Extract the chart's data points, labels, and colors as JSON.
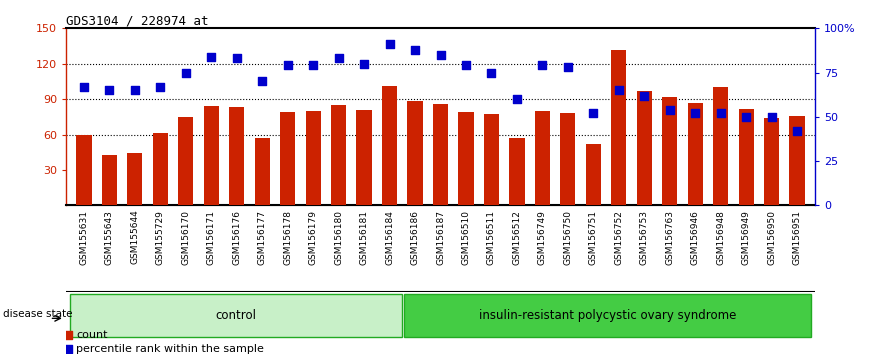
{
  "title": "GDS3104 / 228974_at",
  "categories": [
    "GSM155631",
    "GSM155643",
    "GSM155644",
    "GSM155729",
    "GSM156170",
    "GSM156171",
    "GSM156176",
    "GSM156177",
    "GSM156178",
    "GSM156179",
    "GSM156180",
    "GSM156181",
    "GSM156184",
    "GSM156186",
    "GSM156187",
    "GSM156510",
    "GSM156511",
    "GSM156512",
    "GSM156749",
    "GSM156750",
    "GSM156751",
    "GSM156752",
    "GSM156753",
    "GSM156763",
    "GSM156946",
    "GSM156948",
    "GSM156949",
    "GSM156950",
    "GSM156951"
  ],
  "counts": [
    60,
    43,
    44,
    61,
    75,
    84,
    83,
    57,
    79,
    80,
    85,
    81,
    101,
    88,
    86,
    79,
    77,
    57,
    80,
    78,
    52,
    132,
    97,
    92,
    87,
    100,
    82,
    74,
    76
  ],
  "percentiles": [
    67,
    65,
    65,
    67,
    75,
    84,
    83,
    70,
    79,
    79,
    83,
    80,
    91,
    88,
    85,
    79,
    75,
    60,
    79,
    78,
    52,
    65,
    62,
    54,
    52,
    52,
    50,
    50,
    42
  ],
  "control_count": 13,
  "group1_label": "control",
  "group2_label": "insulin-resistant polycystic ovary syndrome",
  "disease_state_label": "disease state",
  "bar_color": "#cc2200",
  "dot_color": "#0000cc",
  "left_axis_color": "#cc2200",
  "right_axis_color": "#0000cc",
  "left_yticks": [
    30,
    60,
    90,
    120,
    150
  ],
  "right_yticks": [
    0,
    25,
    50,
    75,
    100
  ],
  "right_ytick_labels": [
    "0",
    "25",
    "50",
    "75",
    "100%"
  ],
  "ylim_left": [
    0,
    150
  ],
  "legend_count_label": "count",
  "legend_pct_label": "percentile rank within the sample",
  "bg_color": "#ffffff",
  "plot_bg_color": "#ffffff",
  "grid_color": "#000000",
  "group1_bg": "#c8f0c8",
  "group2_bg": "#44cc44",
  "tick_bg_color": "#d4d4d4"
}
